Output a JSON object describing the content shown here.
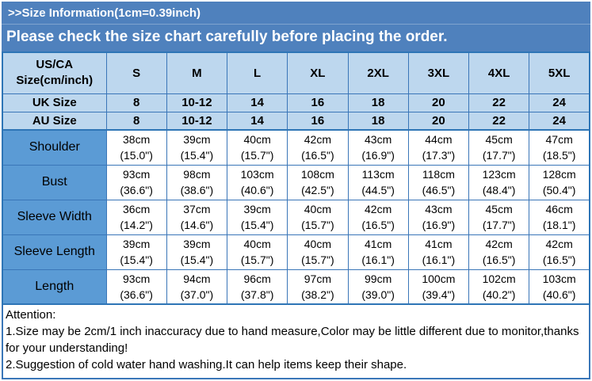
{
  "banner": {
    "title": ">>Size Information(1cm=0.39inch)",
    "subtitle": "Please check the size chart carefully before placing the order."
  },
  "table": {
    "corner_label_line1": "US/CA",
    "corner_label_line2": "Size(cm/inch)",
    "size_headers": [
      "S",
      "M",
      "L",
      "XL",
      "2XL",
      "3XL",
      "4XL",
      "5XL"
    ],
    "size_rows": [
      {
        "label": "UK Size",
        "values": [
          "8",
          "10-12",
          "14",
          "16",
          "18",
          "20",
          "22",
          "24"
        ]
      },
      {
        "label": "AU Size",
        "values": [
          "8",
          "10-12",
          "14",
          "16",
          "18",
          "20",
          "22",
          "24"
        ]
      }
    ],
    "measure_rows": [
      {
        "label": "Shoulder",
        "cells": [
          {
            "cm": "38cm",
            "in": "(15.0\")"
          },
          {
            "cm": "39cm",
            "in": "(15.4\")"
          },
          {
            "cm": "40cm",
            "in": "(15.7\")"
          },
          {
            "cm": "42cm",
            "in": "(16.5\")"
          },
          {
            "cm": "43cm",
            "in": "(16.9\")"
          },
          {
            "cm": "44cm",
            "in": "(17.3\")"
          },
          {
            "cm": "45cm",
            "in": "(17.7\")"
          },
          {
            "cm": "47cm",
            "in": "(18.5\")"
          }
        ]
      },
      {
        "label": "Bust",
        "cells": [
          {
            "cm": "93cm",
            "in": "(36.6\")"
          },
          {
            "cm": "98cm",
            "in": "(38.6\")"
          },
          {
            "cm": "103cm",
            "in": "(40.6\")"
          },
          {
            "cm": "108cm",
            "in": "(42.5\")"
          },
          {
            "cm": "113cm",
            "in": "(44.5\")"
          },
          {
            "cm": "118cm",
            "in": "(46.5\")"
          },
          {
            "cm": "123cm",
            "in": "(48.4\")"
          },
          {
            "cm": "128cm",
            "in": "(50.4\")"
          }
        ]
      },
      {
        "label": "Sleeve Width",
        "cells": [
          {
            "cm": "36cm",
            "in": "(14.2\")"
          },
          {
            "cm": "37cm",
            "in": "(14.6\")"
          },
          {
            "cm": "39cm",
            "in": "(15.4\")"
          },
          {
            "cm": "40cm",
            "in": "(15.7\")"
          },
          {
            "cm": "42cm",
            "in": "(16.5\")"
          },
          {
            "cm": "43cm",
            "in": "(16.9\")"
          },
          {
            "cm": "45cm",
            "in": "(17.7\")"
          },
          {
            "cm": "46cm",
            "in": "(18.1\")"
          }
        ]
      },
      {
        "label": "Sleeve Length",
        "cells": [
          {
            "cm": "39cm",
            "in": "(15.4\")"
          },
          {
            "cm": "39cm",
            "in": "(15.4\")"
          },
          {
            "cm": "40cm",
            "in": "(15.7\")"
          },
          {
            "cm": "40cm",
            "in": "(15.7\")"
          },
          {
            "cm": "41cm",
            "in": "(16.1\")"
          },
          {
            "cm": "41cm",
            "in": "(16.1\")"
          },
          {
            "cm": "42cm",
            "in": "(16.5\")"
          },
          {
            "cm": "42cm",
            "in": "(16.5\")"
          }
        ]
      },
      {
        "label": "Length",
        "cells": [
          {
            "cm": "93cm",
            "in": "(36.6\")"
          },
          {
            "cm": "94cm",
            "in": "(37.0\")"
          },
          {
            "cm": "96cm",
            "in": "(37.8\")"
          },
          {
            "cm": "97cm",
            "in": "(38.2\")"
          },
          {
            "cm": "99cm",
            "in": "(39.0\")"
          },
          {
            "cm": "100cm",
            "in": "(39.4\")"
          },
          {
            "cm": "102cm",
            "in": "(40.2\")"
          },
          {
            "cm": "103cm",
            "in": "(40.6\")"
          }
        ]
      }
    ]
  },
  "attention": {
    "title": "Attention:",
    "notes": [
      "1.Size may be 2cm/1 inch inaccuracy due to hand measure,Color may be little different due to monitor,thanks for your understanding!",
      "2.Suggestion of cold water hand washing.It can help items keep their shape."
    ]
  },
  "colors": {
    "banner_blue": "#4f81bd",
    "label_blue": "#5b9bd5",
    "light_blue": "#bdd7ee",
    "grid_blue": "#3a76b8",
    "outer_border_blue": "#2e75b6",
    "banner_text": "#ffffff",
    "cell_text": "#000000"
  }
}
